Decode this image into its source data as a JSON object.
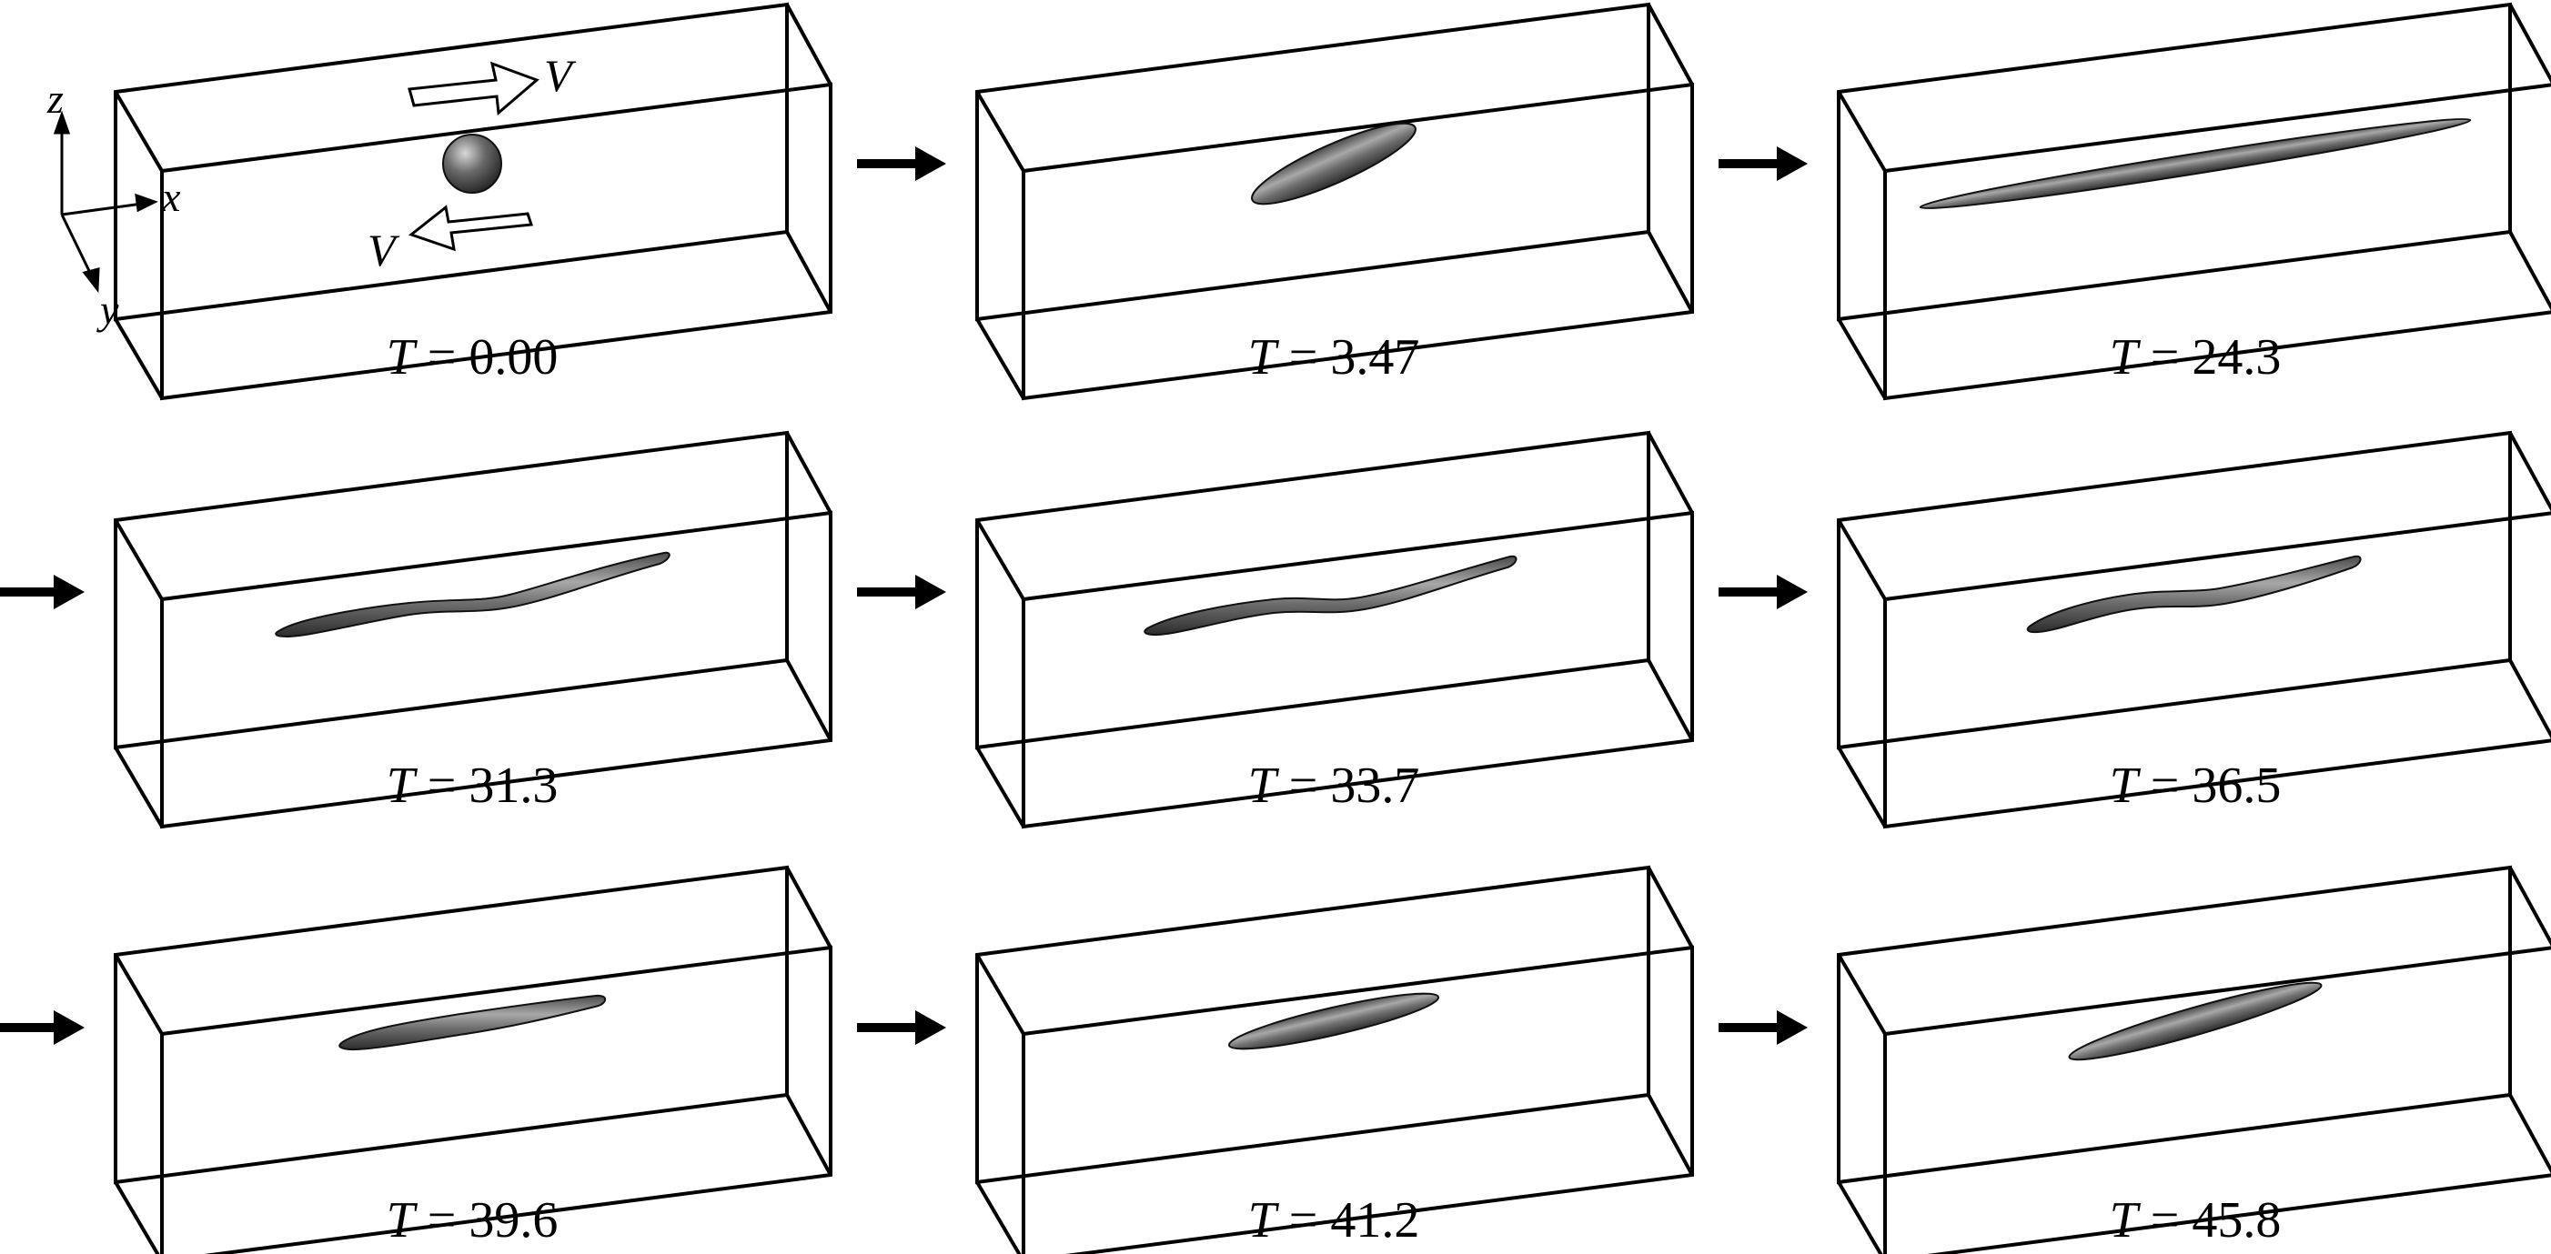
{
  "figure": {
    "axes": {
      "x": "x",
      "y": "y",
      "z": "z"
    },
    "shear_velocity_label": "V",
    "variable": "T",
    "panels": [
      {
        "time": "0.00",
        "shape": "sphere"
      },
      {
        "time": "3.47",
        "shape": "ellipsoid"
      },
      {
        "time": "24.3",
        "shape": "elongated"
      },
      {
        "time": "31.3",
        "shape": "wavy"
      },
      {
        "time": "33.7",
        "shape": "wavy"
      },
      {
        "time": "36.5",
        "shape": "wavy"
      },
      {
        "time": "39.6",
        "shape": "elongated"
      },
      {
        "time": "41.2",
        "shape": "elongated"
      },
      {
        "time": "45.8",
        "shape": "elongated"
      }
    ],
    "colors": {
      "droplet_dark": "#3a3a3a",
      "droplet_light": "#bdbdbd",
      "line": "#000000"
    }
  }
}
